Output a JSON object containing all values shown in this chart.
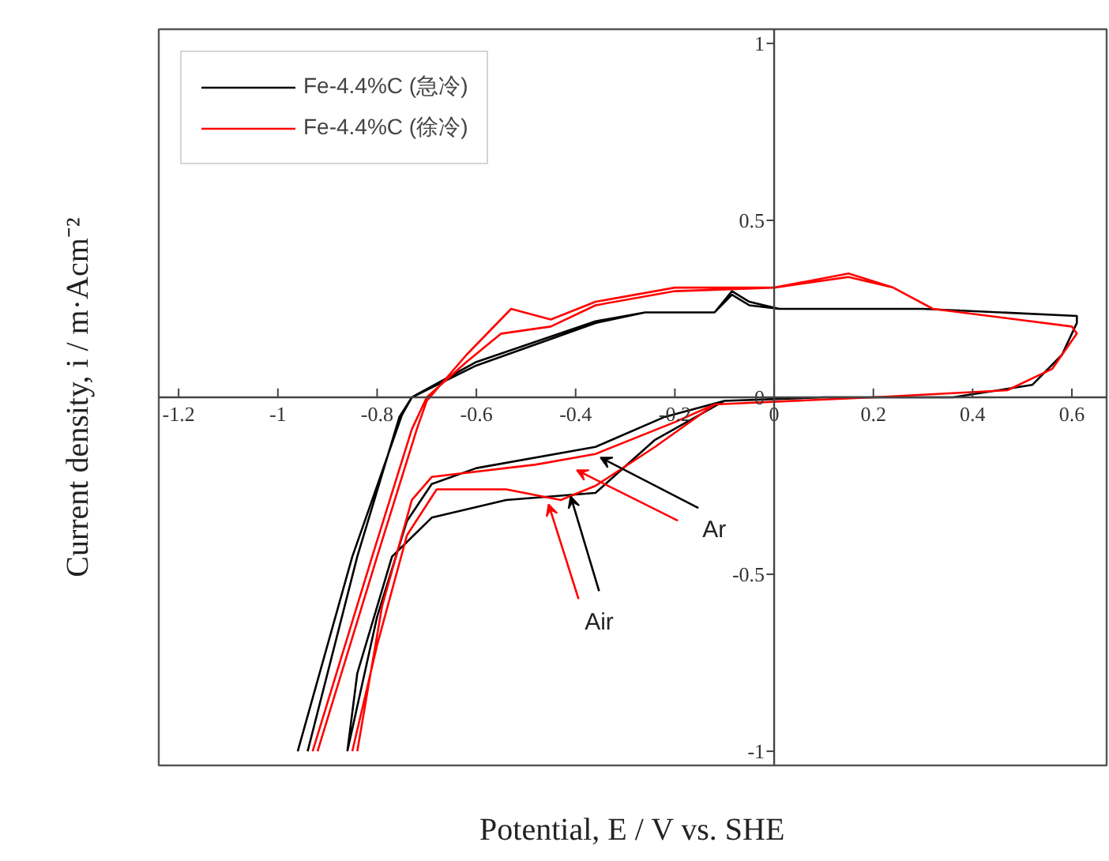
{
  "chart_data": {
    "type": "line",
    "xlabel": "Potential, E / V vs. SHE",
    "ylabel": "Current density, i / m·Acm⁻²",
    "xlim": [
      -1.24,
      0.67
    ],
    "ylim": [
      -1.04,
      1.04
    ],
    "xticks": [
      -1.2,
      -1,
      -0.8,
      -0.6,
      -0.4,
      -0.2,
      0,
      0.2,
      0.4,
      0.6
    ],
    "yticks": [
      -1,
      -0.5,
      0,
      0.5,
      1
    ],
    "legend": "top left",
    "marker": "none",
    "line_style": "solid",
    "series": [
      {
        "name": "Fe-4.4%C (急冷)",
        "color": "#000000",
        "x": [
          -0.94,
          -0.84,
          -0.755,
          -0.73,
          -0.6,
          -0.36,
          -0.26,
          -0.12,
          -0.085,
          -0.05,
          0.01,
          0.3,
          0.61,
          0.61,
          0.58,
          0.52,
          0.36,
          0.1,
          -0.1,
          -0.22,
          -0.36,
          -0.6,
          -0.69,
          -0.74,
          -0.8,
          -0.86,
          null,
          -0.96,
          -0.85,
          -0.75,
          -0.73,
          -0.6,
          -0.36,
          -0.26,
          -0.12,
          -0.085,
          -0.05,
          0.01,
          0.3,
          0.61,
          0.61,
          0.58,
          0.52,
          0.36,
          0.1,
          -0.1,
          -0.24,
          -0.36,
          -0.54,
          -0.69,
          -0.77,
          -0.84,
          -0.86
        ],
        "values": [
          -1,
          -0.45,
          -0.055,
          0,
          0.1,
          0.215,
          0.24,
          0.24,
          0.3,
          0.27,
          0.25,
          0.25,
          0.23,
          0.21,
          0.12,
          0.035,
          0,
          0,
          -0.01,
          -0.055,
          -0.14,
          -0.2,
          -0.245,
          -0.35,
          -0.62,
          -1,
          null,
          -1,
          -0.45,
          -0.05,
          0,
          0.09,
          0.21,
          0.24,
          0.24,
          0.29,
          0.26,
          0.25,
          0.25,
          0.23,
          0.21,
          0.12,
          0.035,
          0,
          0,
          -0.01,
          -0.12,
          -0.27,
          -0.29,
          -0.34,
          -0.45,
          -0.78,
          -1
        ]
      },
      {
        "name": "Fe-4.4%C (徐冷)",
        "color": "#ff0000",
        "x": [
          -0.92,
          -0.8,
          -0.72,
          -0.7,
          -0.62,
          -0.53,
          -0.45,
          -0.36,
          -0.2,
          0,
          0.15,
          0.24,
          0.32,
          0.6,
          0.61,
          0.56,
          0.47,
          0.2,
          -0.12,
          -0.2,
          -0.36,
          -0.48,
          -0.69,
          -0.73,
          -0.79,
          -0.84,
          null,
          -0.93,
          -0.81,
          -0.73,
          -0.7,
          -0.62,
          -0.55,
          -0.45,
          -0.36,
          -0.2,
          0,
          0.15,
          0.24,
          0.32,
          0.6,
          0.61,
          0.56,
          0.47,
          0.2,
          -0.12,
          -0.24,
          -0.36,
          -0.43,
          -0.54,
          -0.68,
          -0.74,
          -0.8,
          -0.85
        ],
        "values": [
          -1,
          -0.45,
          -0.09,
          -0.01,
          0.12,
          0.25,
          0.22,
          0.27,
          0.31,
          0.31,
          0.35,
          0.31,
          0.25,
          0.2,
          0.18,
          0.08,
          0.02,
          0,
          -0.02,
          -0.07,
          -0.16,
          -0.19,
          -0.225,
          -0.29,
          -0.59,
          -1,
          null,
          -1,
          -0.45,
          -0.09,
          0,
          0.1,
          0.18,
          0.2,
          0.26,
          0.3,
          0.31,
          0.34,
          0.31,
          0.25,
          0.2,
          0.18,
          0.08,
          0.02,
          0,
          -0.02,
          -0.14,
          -0.25,
          -0.29,
          -0.26,
          -0.26,
          -0.39,
          -0.7,
          -1
        ]
      }
    ],
    "annotations": [
      {
        "text": "Ar",
        "x": -0.35,
        "y": -0.17
      },
      {
        "text": "Air",
        "x": -0.41,
        "y": -0.28
      }
    ]
  }
}
